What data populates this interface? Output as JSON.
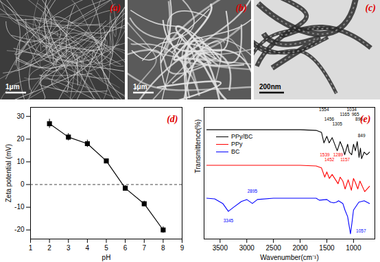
{
  "images": [
    {
      "label": "(a)",
      "scale_bar": "1μm"
    },
    {
      "label": "(b)",
      "scale_bar": "1μm"
    },
    {
      "label": "(c)",
      "scale_bar": "200nm"
    }
  ],
  "chart_data": [
    {
      "type": "line",
      "panel_label": "(d)",
      "x_label": "pH",
      "y_label": "Zeta potential (mV)",
      "x": [
        2,
        3,
        4,
        5,
        6,
        7,
        8
      ],
      "values": [
        26.8,
        20.9,
        18,
        10.4,
        -1.6,
        -8.5,
        -20
      ],
      "errors": [
        2,
        1.6,
        1.6,
        0.8,
        1.2,
        1.2,
        1.4
      ],
      "color": "#000000",
      "marker": "square",
      "xlim": [
        1,
        9
      ],
      "xticks": [
        1,
        2,
        3,
        4,
        5,
        6,
        7,
        8,
        9
      ],
      "ylim": [
        -24,
        34
      ],
      "yticks": [
        -20,
        -10,
        0,
        10,
        20,
        30
      ],
      "hline": 0,
      "grid": false
    },
    {
      "type": "line",
      "panel_label": "(e)",
      "x_label": "Wavenumber(cm⁻¹)",
      "y_label": "Transmittence(%)",
      "xlim": [
        3800,
        600
      ],
      "xticks": [
        3500,
        3000,
        2500,
        2000,
        1500,
        1000
      ],
      "ylim": [
        0,
        100
      ],
      "tick_labels": "x",
      "legend": "left",
      "grid": false,
      "series": [
        {
          "name": "PPy/BC",
          "color": "#000000",
          "x": [
            3750,
            2000,
            1700,
            1600,
            1554,
            1500,
            1456,
            1400,
            1305,
            1250,
            1200,
            1165,
            1110,
            1080,
            1034,
            1000,
            965,
            930,
            896,
            870,
            849,
            800,
            750,
            700
          ],
          "values": [
            83,
            83,
            82.5,
            81,
            73,
            78,
            73,
            77,
            67,
            74,
            69,
            64,
            72,
            66,
            64,
            72,
            67,
            74,
            62,
            69,
            61,
            66,
            64,
            66
          ]
        },
        {
          "name": "PPy",
          "color": "#ff0000",
          "x": [
            3750,
            2000,
            1700,
            1600,
            1539,
            1500,
            1452,
            1400,
            1289,
            1250,
            1200,
            1157,
            1100,
            1040,
            1000,
            965,
            920,
            880,
            790,
            700
          ],
          "values": [
            56,
            56,
            55.5,
            54,
            47,
            51,
            46,
            49,
            42,
            47,
            44,
            38,
            45,
            37,
            46,
            43,
            38,
            44,
            36,
            40
          ]
        },
        {
          "name": "BC",
          "color": "#0000ff",
          "x": [
            3750,
            3600,
            3450,
            3345,
            3250,
            3100,
            3000,
            2895,
            2800,
            2500,
            2000,
            1700,
            1640,
            1500,
            1430,
            1370,
            1320,
            1280,
            1200,
            1160,
            1110,
            1057,
            1030,
            1000,
            900,
            800,
            700
          ],
          "values": [
            31,
            30.5,
            27,
            21,
            24,
            28.5,
            30,
            27,
            30,
            31,
            31,
            31,
            29.5,
            30,
            28,
            27.5,
            28,
            29,
            27,
            22,
            17,
            4,
            12,
            22,
            28,
            29,
            27
          ]
        }
      ],
      "annotations": [
        {
          "text": "1554",
          "x": 1554,
          "y": 98,
          "series": "PPy/BC"
        },
        {
          "text": "1034",
          "x": 1034,
          "y": 98,
          "series": "PPy/BC"
        },
        {
          "text": "1165",
          "x": 1165,
          "y": 94.5,
          "series": "PPy/BC"
        },
        {
          "text": "965",
          "x": 965,
          "y": 94.5,
          "series": "PPy/BC"
        },
        {
          "text": "1456",
          "x": 1456,
          "y": 91,
          "series": "PPy/BC"
        },
        {
          "text": "896",
          "x": 896,
          "y": 91,
          "series": "PPy/BC"
        },
        {
          "text": "1305",
          "x": 1305,
          "y": 87.5,
          "series": "PPy/BC"
        },
        {
          "text": "849",
          "x": 849,
          "y": 78.5,
          "series": "PPy/BC"
        },
        {
          "text": "1539",
          "x": 1539,
          "y": 64,
          "series": "PPy"
        },
        {
          "text": "1452",
          "x": 1452,
          "y": 60,
          "series": "PPy"
        },
        {
          "text": "1289",
          "x": 1289,
          "y": 64,
          "series": "PPy"
        },
        {
          "text": "1157",
          "x": 1157,
          "y": 60,
          "series": "PPy"
        },
        {
          "text": "3345",
          "x": 3345,
          "y": 14,
          "series": "BC"
        },
        {
          "text": "2895",
          "x": 2895,
          "y": 36,
          "series": "BC"
        },
        {
          "text": "1057",
          "x": 860,
          "y": 6,
          "series": "BC"
        }
      ]
    }
  ]
}
